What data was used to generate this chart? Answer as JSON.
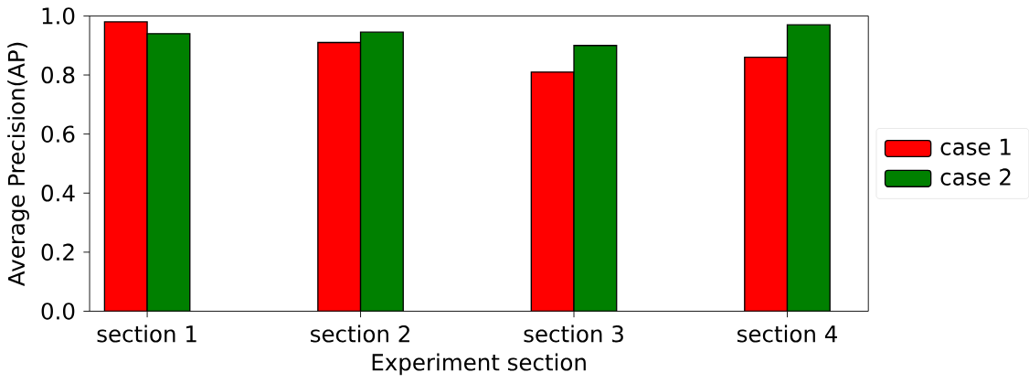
{
  "chart_data": {
    "type": "bar",
    "xlabel": "Experiment section",
    "ylabel": "Average Precision(AP)",
    "categories": [
      "section 1",
      "section 2",
      "section 3",
      "section 4"
    ],
    "series": [
      {
        "name": "case 1",
        "color": "#ff0000",
        "values": [
          0.98,
          0.91,
          0.81,
          0.86
        ]
      },
      {
        "name": "case 2",
        "color": "#008000",
        "values": [
          0.94,
          0.945,
          0.9,
          0.97
        ]
      }
    ],
    "ylim": [
      0,
      1
    ],
    "yticks": [
      {
        "value": 0,
        "label": "0.0"
      },
      0.2,
      0.4,
      0.6,
      0.8,
      {
        "value": 1,
        "label": "1.0"
      }
    ],
    "legend": "right",
    "grid": false
  }
}
